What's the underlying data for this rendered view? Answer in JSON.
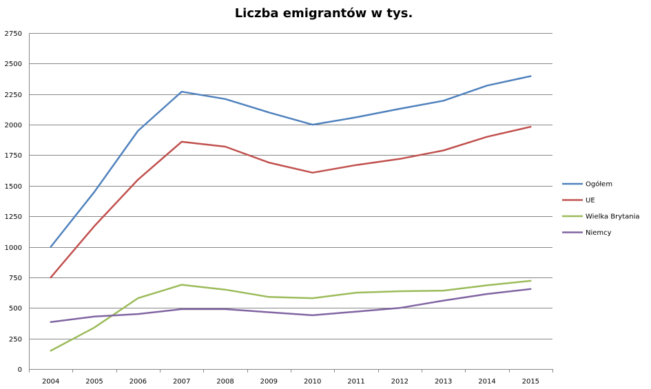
{
  "chart_data": {
    "type": "line",
    "title": "Liczba emigrantów w tys.",
    "xlabel": "",
    "ylabel": "",
    "categories": [
      "2004",
      "2005",
      "2006",
      "2007",
      "2008",
      "2009",
      "2010",
      "2011",
      "2012",
      "2013",
      "2014",
      "2015"
    ],
    "ylim": [
      0,
      2750
    ],
    "yticks": [
      0,
      250,
      500,
      750,
      1000,
      1250,
      1500,
      1750,
      2000,
      2250,
      2500,
      2750
    ],
    "grid": true,
    "legend_position": "right",
    "series": [
      {
        "name": "Ogółem",
        "color": "#4f81bd",
        "values": [
          1000,
          1450,
          1950,
          2270,
          2210,
          2100,
          2000,
          2060,
          2130,
          2196,
          2320,
          2397
        ]
      },
      {
        "name": "UE",
        "color": "#c0504d",
        "values": [
          750,
          1170,
          1550,
          1860,
          1820,
          1690,
          1607,
          1670,
          1720,
          1789,
          1901,
          1983
        ]
      },
      {
        "name": "Wielka Brytania",
        "color": "#9bbb59",
        "values": [
          150,
          340,
          580,
          690,
          650,
          590,
          580,
          625,
          637,
          642,
          685,
          722
        ]
      },
      {
        "name": "Niemcy",
        "color": "#8064a2",
        "values": [
          385,
          430,
          450,
          490,
          490,
          465,
          440,
          470,
          500,
          560,
          614,
          655
        ]
      }
    ]
  }
}
